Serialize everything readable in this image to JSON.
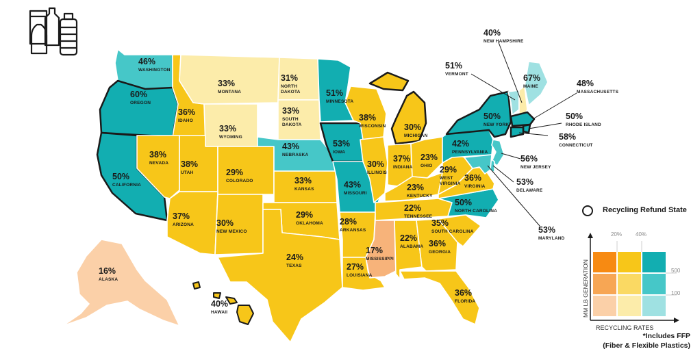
{
  "map": {
    "colors": {
      "dark_teal": "#12aeb1",
      "mid_teal": "#46c7c8",
      "light_teal": "#9fe1e2",
      "yellow": "#f7c619",
      "mid_yellow": "#fad963",
      "light_yellow": "#fcecaa",
      "orange": "#f7b37a",
      "peach": "#fbd0a8",
      "outline": "#ffffff",
      "refund_outline": "#1a1a1a"
    },
    "states": {
      "washington": {
        "pct": "46%",
        "name": "WASHINGTON"
      },
      "oregon": {
        "pct": "60%",
        "name": "OREGON"
      },
      "california": {
        "pct": "50%",
        "name": "CALIFORNIA"
      },
      "idaho": {
        "pct": "36%",
        "name": "IDAHO"
      },
      "nevada": {
        "pct": "38%",
        "name": "NEVADA"
      },
      "montana": {
        "pct": "33%",
        "name": "MONTANA"
      },
      "wyoming": {
        "pct": "33%",
        "name": "WYOMING"
      },
      "utah": {
        "pct": "38%",
        "name": "UTAH"
      },
      "arizona": {
        "pct": "37%",
        "name": "ARIZONA"
      },
      "colorado": {
        "pct": "29%",
        "name": "COLORADO"
      },
      "new_mexico": {
        "pct": "30%",
        "name": "NEW MEXICO"
      },
      "north_dakota": {
        "pct": "31%",
        "name_1": "NORTH",
        "name_2": "DAKOTA"
      },
      "south_dakota": {
        "pct": "33%",
        "name_1": "SOUTH",
        "name_2": "DAKOTA"
      },
      "nebraska": {
        "pct": "43%",
        "name": "NEBRASKA"
      },
      "kansas": {
        "pct": "33%",
        "name": "KANSAS"
      },
      "oklahoma": {
        "pct": "29%",
        "name": "OKLAHOMA"
      },
      "texas": {
        "pct": "24%",
        "name": "TEXAS"
      },
      "minnesota": {
        "pct": "51%",
        "name": "MINNESOTA"
      },
      "iowa": {
        "pct": "53%",
        "name": "IOWA"
      },
      "missouri": {
        "pct": "43%",
        "name": "MISSOURI"
      },
      "arkansas": {
        "pct": "28%",
        "name": "ARKANSAS"
      },
      "louisiana": {
        "pct": "27%",
        "name": "LOUISIANA"
      },
      "wisconsin": {
        "pct": "38%",
        "name": "WISCONSIN"
      },
      "illinois": {
        "pct": "30%",
        "name": "ILLINOIS"
      },
      "michigan": {
        "pct": "30%",
        "name": "MICHIGAN"
      },
      "indiana": {
        "pct": "37%",
        "name": "INDIANA"
      },
      "ohio": {
        "pct": "23%",
        "name": "OHIO"
      },
      "kentucky": {
        "pct": "23%",
        "name": "KENTUCKY"
      },
      "tennessee": {
        "pct": "22%",
        "name": "TENNESSEE"
      },
      "mississippi": {
        "pct": "17%",
        "name": "MISSISSIPPI"
      },
      "alabama": {
        "pct": "22%",
        "name": "ALABAMA"
      },
      "georgia": {
        "pct": "36%",
        "name": "GEORGIA"
      },
      "florida": {
        "pct": "36%",
        "name": "FLORIDA"
      },
      "south_carolina": {
        "pct": "35%",
        "name": "SOUTH CAROLINA"
      },
      "north_carolina": {
        "pct": "50%",
        "name": "NORTH CAROLINA"
      },
      "virginia": {
        "pct": "36%",
        "name": "VIRGINIA"
      },
      "west_virginia": {
        "pct": "29%",
        "name_1": "WEST",
        "name_2": "VIRGINIA"
      },
      "pennsylvania": {
        "pct": "42%",
        "name": "PENNSYLVANIA"
      },
      "new_york": {
        "pct": "50%",
        "name": "NEW YORK"
      },
      "vermont": {
        "pct": "51%",
        "name": "VERMONT"
      },
      "new_hampshire": {
        "pct": "40%",
        "name": "NEW HAMPSHIRE"
      },
      "maine": {
        "pct": "67%",
        "name": "MAINE"
      },
      "massachusetts": {
        "pct": "48%",
        "name": "MASSACHUSETTS"
      },
      "rhode_island": {
        "pct": "50%",
        "name": "RHODE ISLAND"
      },
      "connecticut": {
        "pct": "58%",
        "name": "CONNECTICUT"
      },
      "new_jersey": {
        "pct": "56%",
        "name": "NEW JERSEY"
      },
      "delaware": {
        "pct": "53%",
        "name": "DELAWARE"
      },
      "maryland": {
        "pct": "53%",
        "name": "MARYLAND"
      },
      "alaska": {
        "pct": "16%",
        "name": "ALASKA"
      },
      "hawaii": {
        "pct": "40%",
        "name": "HAWAII"
      }
    }
  },
  "legend": {
    "refund_title": "Recycling Refund State",
    "y_axis_label": "MM LB GENERATION",
    "x_axis_label": "RECYCLING RATES",
    "rate_ticks": [
      "20%",
      "40%"
    ],
    "gen_ticks": [
      "500",
      "100"
    ],
    "note_line1": "*Includes FFP",
    "note_line2": "(Fiber & Flexible Plastics)"
  },
  "logo": {
    "icon": "recycling-containers-icon"
  }
}
